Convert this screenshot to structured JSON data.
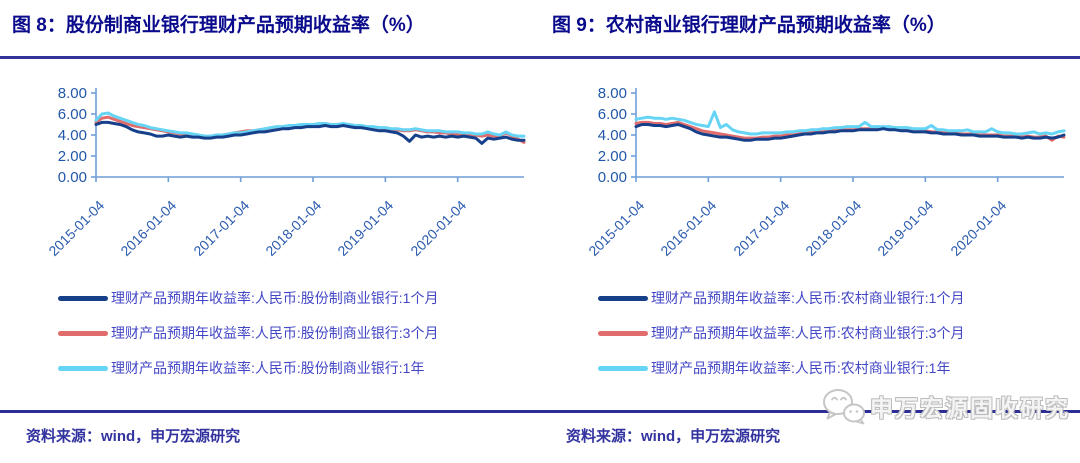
{
  "watermark": {
    "text": "申万宏源固收研究",
    "icon": "wechat-icon"
  },
  "theme": {
    "title_color": "#0a0a8c",
    "divider_color": "#32329b",
    "bottom_divider_color": "#2d2d96",
    "axis_color": "#6e9ed8",
    "y_tick_label_color": "#2157a8",
    "x_tick_label_color": "#2b5cb0",
    "legend_text_color": "#4347c6",
    "source_text_color": "#3333a0",
    "watermark_color": "#bdbdbd",
    "series_navy": "#17408b",
    "series_red": "#e06c6c",
    "series_cyan": "#66d4f5"
  },
  "chart_data": [
    {
      "type": "line",
      "title": "图 8：股份制商业银行理财产品预期收益率（%）",
      "source": "资料来源：wind，申万宏源研究",
      "ylim": [
        0,
        8
      ],
      "y_tick_step": 2,
      "y_ticks": [
        "8.00",
        "6.00",
        "4.00",
        "2.00",
        "0.00"
      ],
      "x_tick_labels": [
        "2015-01-04",
        "2016-01-04",
        "2017-01-04",
        "2018-01-04",
        "2019-01-04",
        "2020-01-04"
      ],
      "x_range": [
        "2015-01",
        "2020-12"
      ],
      "legend_position": "bottom",
      "grid": false,
      "series": [
        {
          "name": "理财产品预期年收益率:人民币:股份制商业银行:1个月",
          "color": "#17408b",
          "values": [
            5.0,
            5.2,
            5.2,
            5.1,
            5.0,
            4.8,
            4.5,
            4.3,
            4.2,
            4.1,
            3.9,
            3.9,
            4.0,
            3.9,
            3.8,
            3.9,
            3.8,
            3.8,
            3.7,
            3.7,
            3.8,
            3.8,
            3.9,
            4.0,
            4.0,
            4.1,
            4.2,
            4.3,
            4.3,
            4.4,
            4.5,
            4.6,
            4.6,
            4.7,
            4.7,
            4.8,
            4.8,
            4.8,
            4.9,
            4.8,
            4.8,
            4.9,
            4.8,
            4.7,
            4.7,
            4.6,
            4.5,
            4.4,
            4.4,
            4.3,
            4.2,
            3.9,
            3.4,
            4.0,
            3.8,
            3.9,
            3.8,
            3.9,
            3.8,
            3.9,
            3.8,
            3.9,
            3.8,
            3.7,
            3.2,
            3.7,
            3.6,
            3.7,
            3.8,
            3.6,
            3.5,
            3.5
          ]
        },
        {
          "name": "理财产品预期年收益率:人民币:股份制商业银行:3个月",
          "color": "#e06c6c",
          "values": [
            5.2,
            5.6,
            5.7,
            5.5,
            5.3,
            5.1,
            4.9,
            4.8,
            4.7,
            4.6,
            4.5,
            4.4,
            4.3,
            4.2,
            4.1,
            4.1,
            4.0,
            3.9,
            3.9,
            3.8,
            3.9,
            4.0,
            4.1,
            4.2,
            4.3,
            4.4,
            4.4,
            4.5,
            4.5,
            4.6,
            4.7,
            4.7,
            4.8,
            4.8,
            4.9,
            4.9,
            4.9,
            5.0,
            5.0,
            4.9,
            4.9,
            5.0,
            4.9,
            4.8,
            4.8,
            4.7,
            4.7,
            4.6,
            4.6,
            4.5,
            4.5,
            4.4,
            4.4,
            4.5,
            4.4,
            4.3,
            4.3,
            4.2,
            4.2,
            4.1,
            4.1,
            4.1,
            4.0,
            4.0,
            3.9,
            4.0,
            3.9,
            3.9,
            4.2,
            3.9,
            3.6,
            3.3
          ]
        },
        {
          "name": "理财产品预期年收益率:人民币:股份制商业银行:1年",
          "color": "#66d4f5",
          "values": [
            5.4,
            6.0,
            6.1,
            5.8,
            5.6,
            5.4,
            5.2,
            5.0,
            4.9,
            4.7,
            4.6,
            4.5,
            4.4,
            4.3,
            4.2,
            4.2,
            4.1,
            4.0,
            3.9,
            3.9,
            4.0,
            4.0,
            4.1,
            4.2,
            4.2,
            4.3,
            4.4,
            4.5,
            4.6,
            4.7,
            4.8,
            4.8,
            4.9,
            4.9,
            5.0,
            5.0,
            5.0,
            5.1,
            5.1,
            5.0,
            5.0,
            5.1,
            5.0,
            4.9,
            4.9,
            4.8,
            4.8,
            4.7,
            4.7,
            4.6,
            4.6,
            4.5,
            4.5,
            4.6,
            4.5,
            4.4,
            4.4,
            4.4,
            4.3,
            4.3,
            4.3,
            4.2,
            4.2,
            4.1,
            4.1,
            4.3,
            4.1,
            4.0,
            4.3,
            4.0,
            3.9,
            3.9
          ]
        }
      ]
    },
    {
      "type": "line",
      "title": "图 9：农村商业银行理财产品预期收益率（%）",
      "source": "资料来源：wind，申万宏源研究",
      "ylim": [
        0,
        8
      ],
      "y_tick_step": 2,
      "y_ticks": [
        "8.00",
        "6.00",
        "4.00",
        "2.00",
        "0.00"
      ],
      "x_tick_labels": [
        "2015-01-04",
        "2016-01-04",
        "2017-01-04",
        "2018-01-04",
        "2019-01-04",
        "2020-01-04"
      ],
      "x_range": [
        "2015-01",
        "2020-12"
      ],
      "legend_position": "bottom",
      "grid": false,
      "series": [
        {
          "name": "理财产品预期年收益率:人民币:农村商业银行:1个月",
          "color": "#17408b",
          "values": [
            4.8,
            5.0,
            5.0,
            4.9,
            4.9,
            4.8,
            4.9,
            5.0,
            4.8,
            4.6,
            4.3,
            4.1,
            4.0,
            3.9,
            3.8,
            3.8,
            3.7,
            3.6,
            3.5,
            3.5,
            3.6,
            3.6,
            3.6,
            3.7,
            3.7,
            3.8,
            3.9,
            4.0,
            4.1,
            4.1,
            4.2,
            4.2,
            4.3,
            4.3,
            4.4,
            4.4,
            4.4,
            4.5,
            4.5,
            4.5,
            4.5,
            4.6,
            4.5,
            4.5,
            4.4,
            4.4,
            4.3,
            4.3,
            4.3,
            4.2,
            4.2,
            4.1,
            4.1,
            4.1,
            4.0,
            4.0,
            4.0,
            3.9,
            3.9,
            3.9,
            3.9,
            3.8,
            3.8,
            3.8,
            3.7,
            3.8,
            3.7,
            3.7,
            3.8,
            3.7,
            3.8,
            4.0
          ]
        },
        {
          "name": "理财产品预期年收益率:人民币:农村商业银行:3个月",
          "color": "#e06c6c",
          "values": [
            5.1,
            5.2,
            5.2,
            5.1,
            5.1,
            5.0,
            5.1,
            5.2,
            5.0,
            4.8,
            4.6,
            4.4,
            4.3,
            4.2,
            4.1,
            4.0,
            3.9,
            3.8,
            3.7,
            3.7,
            3.7,
            3.8,
            3.8,
            3.9,
            3.9,
            4.0,
            4.0,
            4.1,
            4.2,
            4.2,
            4.3,
            4.3,
            4.4,
            4.4,
            4.5,
            4.5,
            4.5,
            4.6,
            4.6,
            4.6,
            4.6,
            4.7,
            4.6,
            4.6,
            4.5,
            4.5,
            4.4,
            4.4,
            4.4,
            4.3,
            4.3,
            4.2,
            4.2,
            4.2,
            4.1,
            4.1,
            4.1,
            4.0,
            4.0,
            4.0,
            4.0,
            3.9,
            3.9,
            3.9,
            3.8,
            3.9,
            3.8,
            3.8,
            3.9,
            3.5,
            3.9,
            3.8
          ]
        },
        {
          "name": "理财产品预期年收益率:人民币:农村商业银行:1年",
          "color": "#66d4f5",
          "values": [
            5.5,
            5.6,
            5.7,
            5.6,
            5.6,
            5.5,
            5.6,
            5.5,
            5.4,
            5.2,
            5.0,
            4.9,
            4.8,
            6.2,
            4.7,
            5.0,
            4.5,
            4.3,
            4.2,
            4.1,
            4.1,
            4.2,
            4.2,
            4.2,
            4.2,
            4.3,
            4.3,
            4.4,
            4.4,
            4.5,
            4.5,
            4.6,
            4.6,
            4.7,
            4.7,
            4.8,
            4.8,
            4.8,
            5.2,
            4.8,
            4.8,
            4.8,
            4.8,
            4.7,
            4.7,
            4.7,
            4.6,
            4.6,
            4.6,
            4.9,
            4.5,
            4.5,
            4.4,
            4.4,
            4.4,
            4.5,
            4.3,
            4.3,
            4.3,
            4.6,
            4.3,
            4.2,
            4.2,
            4.1,
            4.1,
            4.2,
            4.3,
            4.1,
            4.2,
            4.1,
            4.3,
            4.4
          ]
        }
      ]
    }
  ]
}
